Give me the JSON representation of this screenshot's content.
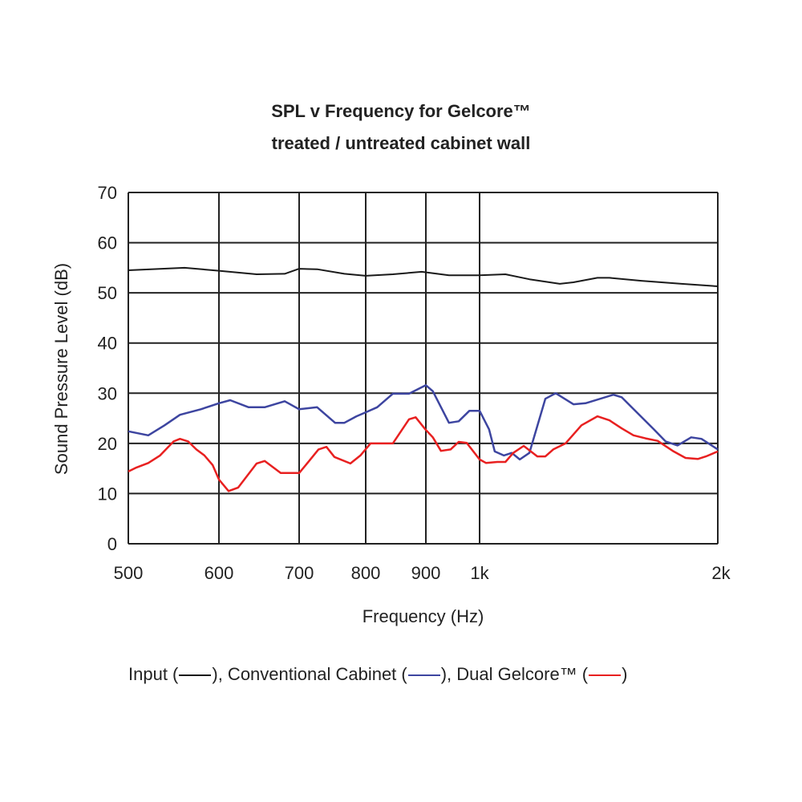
{
  "chart_data": {
    "type": "line",
    "title": "SPL v Frequency for Gelcore™",
    "subtitle": "treated / untreated cabinet wall",
    "xlabel": "Frequency (Hz)",
    "ylabel": "Sound Pressure Level (dB)",
    "xlim": [
      500,
      2000
    ],
    "ylim": [
      0,
      70
    ],
    "x_ticks": [
      500,
      600,
      700,
      800,
      900,
      1000,
      2000
    ],
    "x_tick_labels": [
      "500",
      "600",
      "700",
      "800",
      "900",
      "1k",
      "2k"
    ],
    "y_ticks": [
      0,
      10,
      20,
      30,
      40,
      50,
      60,
      70
    ],
    "y_tick_labels": [
      "0",
      "10",
      "20",
      "30",
      "40",
      "50",
      "60",
      "70"
    ],
    "grid": true,
    "legend_position": "bottom",
    "legend_text": {
      "input": "Input (",
      "sep1": "), Conventional Cabinet (",
      "sep2": "), Dual Gelcore™ (",
      "end": ")"
    },
    "series": [
      {
        "key": "input",
        "color": "#1a1a1a",
        "x": [
          500,
          562,
          600,
          647,
          682,
          700,
          727,
          768,
          800,
          845,
          893,
          943,
          1000,
          1078,
          1156,
          1263,
          1314,
          1409,
          1459,
          1601,
          1800,
          2000
        ],
        "y": [
          54.5,
          55.0,
          54.4,
          53.7,
          53.8,
          54.8,
          54.7,
          53.8,
          53.4,
          53.7,
          54.2,
          53.5,
          53.5,
          53.7,
          52.7,
          51.8,
          52.1,
          53.0,
          53.0,
          52.4,
          51.8,
          51.3
        ]
      },
      {
        "key": "conventional",
        "color": "#3d45a0",
        "x": [
          500,
          522,
          540,
          557,
          580,
          600,
          614,
          637,
          657,
          682,
          700,
          727,
          754,
          768,
          786,
          800,
          819,
          845,
          872,
          900,
          913,
          943,
          961,
          981,
          1000,
          1028,
          1045,
          1073,
          1098,
          1124,
          1156,
          1211,
          1248,
          1314,
          1361,
          1476,
          1512,
          1660,
          1718,
          1779,
          1851,
          1907,
          2000
        ],
        "y": [
          22.4,
          21.6,
          23.6,
          25.7,
          26.8,
          28.0,
          28.6,
          27.2,
          27.2,
          28.4,
          26.8,
          27.2,
          24.1,
          24.1,
          25.4,
          26.2,
          27.2,
          29.9,
          29.9,
          31.6,
          30.4,
          24.1,
          24.4,
          26.5,
          26.5,
          22.8,
          18.4,
          17.6,
          18.1,
          16.8,
          18.1,
          28.9,
          30.0,
          27.8,
          28.0,
          29.7,
          29.2,
          22.8,
          20.4,
          19.6,
          21.2,
          20.9,
          18.8
        ]
      },
      {
        "key": "dual_gelcore",
        "color": "#e82020",
        "x": [
          500,
          509,
          522,
          535,
          550,
          557,
          566,
          575,
          584,
          593,
          600,
          612,
          624,
          647,
          657,
          677,
          689,
          700,
          715,
          729,
          741,
          753,
          777,
          792,
          808,
          825,
          845,
          872,
          883,
          899,
          913,
          928,
          946,
          961,
          976,
          1000,
          1019,
          1053,
          1078,
          1103,
          1137,
          1183,
          1211,
          1239,
          1284,
          1345,
          1409,
          1459,
          1512,
          1565,
          1621,
          1679,
          1759,
          1821,
          1887,
          1932,
          2000
        ],
        "y": [
          14.4,
          15.2,
          16.1,
          17.6,
          20.4,
          20.9,
          20.4,
          18.8,
          17.6,
          15.7,
          12.8,
          10.5,
          11.2,
          16.0,
          16.5,
          14.1,
          14.1,
          14.1,
          16.5,
          18.8,
          19.3,
          17.3,
          16.0,
          17.6,
          20.0,
          20.0,
          20.0,
          24.8,
          25.2,
          22.8,
          21.2,
          18.5,
          18.8,
          20.3,
          20.1,
          16.8,
          16.1,
          16.3,
          16.3,
          18.1,
          19.5,
          17.4,
          17.4,
          18.8,
          20.0,
          23.6,
          25.4,
          24.6,
          23.0,
          21.6,
          21.0,
          20.5,
          18.4,
          17.1,
          16.9,
          17.4,
          18.4
        ]
      }
    ]
  }
}
